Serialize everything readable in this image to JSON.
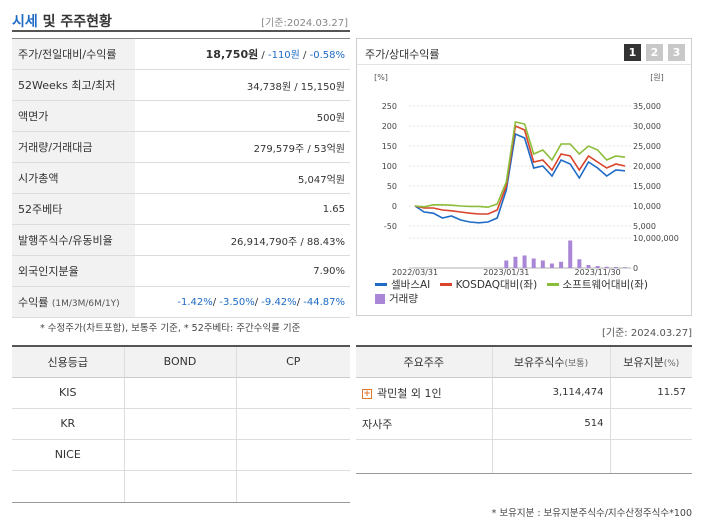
{
  "header": {
    "title_part1": "시세",
    "title_part2": " 및 주주현황",
    "date": "[기준:2024.03.27]"
  },
  "quote": {
    "rows": [
      {
        "label": "주가/전일대비/수익률",
        "price": "18,750원",
        "sep1": " / ",
        "change": "-110원",
        "sep2": " / ",
        "rate": "-0.58%"
      },
      {
        "label": "52Weeks 최고/최저",
        "value": "34,738원 / 15,150원"
      },
      {
        "label": "액면가",
        "value": "500원"
      },
      {
        "label": "거래량/거래대금",
        "value": "279,579주 / 53억원"
      },
      {
        "label": "시가총액",
        "value": "5,047억원"
      },
      {
        "label": "52주베타",
        "value": "1.65"
      },
      {
        "label": "발행주식수/유동비율",
        "value": "26,914,790주 / 88.43%"
      },
      {
        "label": "외국인지분율",
        "value": "7.90%"
      },
      {
        "label": "수익률",
        "label_sub": "(1M/3M/6M/1Y)",
        "r1": "-1.42%",
        "r2": "-3.50%",
        "r3": "-9.42%",
        "r4": "-44.87%",
        "sep": "/ "
      }
    ],
    "footnote": "* 수정주가(차트포함), 보통주 기준, * 52주베타: 주간수익률 기준"
  },
  "chart_panel": {
    "title": "주가/상대수익률",
    "pages": [
      "1",
      "2",
      "3"
    ],
    "active_page": 0
  },
  "chart_data": {
    "type": "line",
    "title": "주가/상대수익률",
    "left_axis_unit": "[%]",
    "right_axis_unit": "[원]",
    "left_ticks": [
      "250",
      "200",
      "150",
      "100",
      "50",
      "0",
      "-50"
    ],
    "right_ticks": [
      "35,000",
      "30,000",
      "25,000",
      "20,000",
      "15,000",
      "10,000",
      "5,000"
    ],
    "volume_ticks": [
      "10,000,000",
      "0"
    ],
    "x_ticks": [
      "2022/03/31",
      "2023/01/31",
      "2023/11/30"
    ],
    "ylim_left": [
      -50,
      250
    ],
    "ylim_right": [
      5000,
      35000
    ],
    "x": [
      0,
      1,
      2,
      3,
      4,
      5,
      6,
      7,
      8,
      9,
      10,
      11,
      12,
      13,
      14,
      15,
      16,
      17,
      18,
      19,
      20,
      21,
      22,
      23
    ],
    "series": [
      {
        "name": "셀바스AI",
        "color": "#1f6bc6",
        "axis": "left",
        "values": [
          0,
          -15,
          -18,
          -30,
          -25,
          -35,
          -40,
          -42,
          -40,
          -30,
          40,
          180,
          170,
          95,
          100,
          75,
          115,
          105,
          70,
          110,
          95,
          75,
          90,
          88
        ]
      },
      {
        "name": "KOSDAQ대비(좌)",
        "color": "#d9442b",
        "axis": "left",
        "values": [
          0,
          -5,
          -5,
          -10,
          -12,
          -15,
          -18,
          -20,
          -20,
          -10,
          50,
          200,
          190,
          110,
          115,
          90,
          130,
          125,
          90,
          125,
          110,
          95,
          105,
          100
        ]
      },
      {
        "name": "소프트웨어대비(좌)",
        "color": "#8cbd3a",
        "axis": "left",
        "values": [
          0,
          -2,
          3,
          3,
          2,
          0,
          -1,
          -1,
          -3,
          5,
          60,
          210,
          205,
          130,
          140,
          115,
          155,
          155,
          130,
          150,
          140,
          115,
          125,
          122
        ]
      },
      {
        "name": "거래량",
        "color": "#a986d6",
        "axis": "volume",
        "values": [
          0,
          0,
          0,
          0,
          0,
          0,
          0,
          0,
          0,
          0,
          3000000,
          4500000,
          5000000,
          3800000,
          3000000,
          1800000,
          2500000,
          11000000,
          3500000,
          1200000,
          800000,
          500000,
          400000,
          300000
        ]
      }
    ],
    "ylim_volume": [
      0,
      12000000
    ]
  },
  "right_date": "[기준: 2024.03.27]",
  "credit": {
    "headers": [
      "신용등급",
      "BOND",
      "CP"
    ],
    "rows": [
      {
        "agency": "KIS",
        "bond": "",
        "cp": ""
      },
      {
        "agency": "KR",
        "bond": "",
        "cp": ""
      },
      {
        "agency": "NICE",
        "bond": "",
        "cp": ""
      },
      {
        "agency": "",
        "bond": "",
        "cp": ""
      }
    ]
  },
  "holders": {
    "headers": [
      "주요주주",
      "보유주식수",
      "(보통)",
      "보유지분",
      "(%)"
    ],
    "rows": [
      {
        "name": "곽민철 외 1인",
        "shares": "3,114,474",
        "pct": "11.57",
        "expand_icon": "plus-icon"
      },
      {
        "name": "자사주",
        "shares": "514",
        "pct": ""
      },
      {
        "name": "",
        "shares": "",
        "pct": ""
      }
    ],
    "footnote": "* 보유지분 : 보유지분주식수/지수산정주식수*100"
  }
}
